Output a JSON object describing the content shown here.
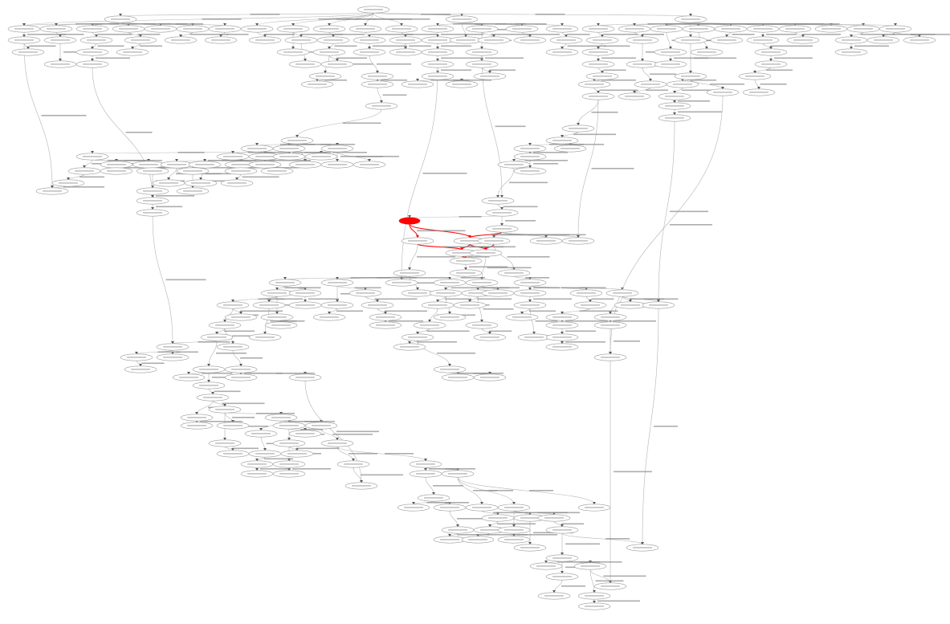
{
  "diagram": {
    "type": "directed-graph",
    "highlight_color": "#ff0000",
    "node_stroke": "#9a9a9a",
    "edge_color": "#b4b4b4",
    "label_color": "#8a8a8a"
  }
}
